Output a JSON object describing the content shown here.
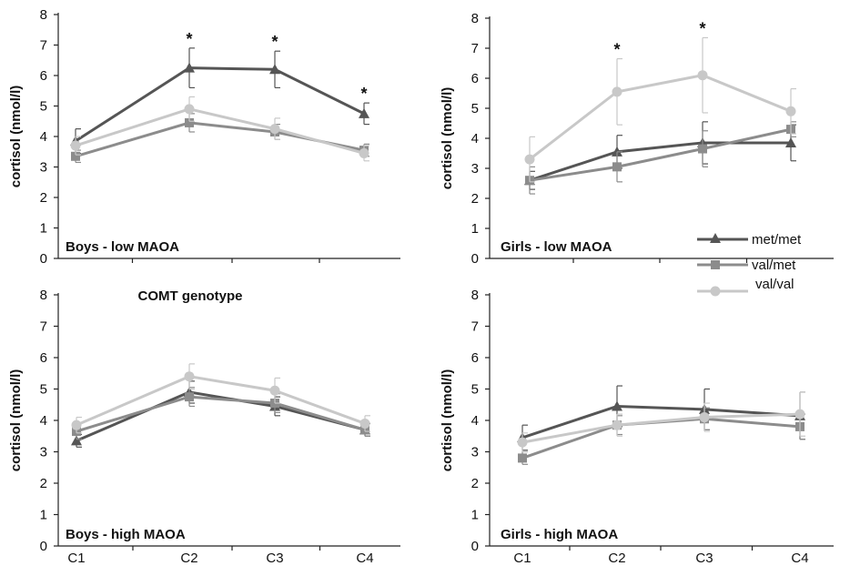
{
  "colors": {
    "met_met": "#555555",
    "val_met": "#8c8c8c",
    "val_val": "#c8c8c8",
    "axis": "#222222"
  },
  "legend": {
    "title": "COMT genotype",
    "entries": [
      {
        "label": "met/met",
        "marker": "triangle",
        "color": "#555555"
      },
      {
        "label": "val/met",
        "marker": "square",
        "color": "#8c8c8c"
      },
      {
        "label": "val/val",
        "marker": "circle",
        "color": "#c8c8c8"
      }
    ]
  },
  "chart_data": [
    {
      "type": "line",
      "title": "Boys - low MAOA",
      "ylabel": "cortisol (nmol/l)",
      "categories": [
        "C1",
        "C2",
        "C3",
        "C4"
      ],
      "ylim": [
        0,
        8
      ],
      "yticks": [
        "0",
        "1",
        "2",
        "3",
        "4",
        "5",
        "6",
        "7",
        "8"
      ],
      "show_xticks": false,
      "significance": [
        "",
        "*",
        "*",
        "*"
      ],
      "series": [
        {
          "name": "met/met",
          "values": [
            3.85,
            6.25,
            6.2,
            4.75
          ],
          "errors": [
            0.4,
            0.65,
            0.6,
            0.35
          ]
        },
        {
          "name": "val/met",
          "values": [
            3.35,
            4.45,
            4.15,
            3.55
          ],
          "errors": [
            0.2,
            0.3,
            0.25,
            0.2
          ]
        },
        {
          "name": "val/val",
          "values": [
            3.7,
            4.9,
            4.25,
            3.45
          ],
          "errors": [
            0.3,
            0.4,
            0.35,
            0.25
          ]
        }
      ]
    },
    {
      "type": "line",
      "title": "Girls - low MAOA",
      "ylabel": "cortisol (nmol/l)",
      "categories": [
        "C1",
        "C2",
        "C3",
        "C4"
      ],
      "ylim": [
        0,
        8
      ],
      "yticks": [
        "0",
        "1",
        "2",
        "3",
        "4",
        "5",
        "6",
        "7",
        "8"
      ],
      "show_xticks": false,
      "significance": [
        "",
        "*",
        "*",
        ""
      ],
      "series": [
        {
          "name": "met/met",
          "values": [
            2.6,
            3.55,
            3.85,
            3.85
          ],
          "errors": [
            0.3,
            0.55,
            0.7,
            0.6
          ]
        },
        {
          "name": "val/met",
          "values": [
            2.6,
            3.05,
            3.65,
            4.3
          ],
          "errors": [
            0.45,
            0.5,
            0.6,
            0.25
          ]
        },
        {
          "name": "val/val",
          "values": [
            3.3,
            5.55,
            6.1,
            4.9
          ],
          "errors": [
            0.75,
            1.1,
            1.25,
            0.75
          ]
        }
      ]
    },
    {
      "type": "line",
      "title": "Boys - high MAOA",
      "ylabel": "cortisol (nmol/l)",
      "categories": [
        "C1",
        "C2",
        "C3",
        "C4"
      ],
      "ylim": [
        0,
        8
      ],
      "yticks": [
        "0",
        "1",
        "2",
        "3",
        "4",
        "5",
        "6",
        "7",
        "8"
      ],
      "show_xticks": true,
      "significance": [
        "",
        "",
        "",
        ""
      ],
      "series": [
        {
          "name": "met/met",
          "values": [
            3.35,
            4.9,
            4.45,
            3.7
          ],
          "errors": [
            0.2,
            0.35,
            0.3,
            0.2
          ]
        },
        {
          "name": "val/met",
          "values": [
            3.65,
            4.75,
            4.55,
            3.7
          ],
          "errors": [
            0.25,
            0.3,
            0.3,
            0.2
          ]
        },
        {
          "name": "val/val",
          "values": [
            3.85,
            5.4,
            4.95,
            3.9
          ],
          "errors": [
            0.25,
            0.4,
            0.4,
            0.25
          ]
        }
      ]
    },
    {
      "type": "line",
      "title": "Girls - high MAOA",
      "ylabel": "cortisol (nmol/l)",
      "categories": [
        "C1",
        "C2",
        "C3",
        "C4"
      ],
      "ylim": [
        0,
        8
      ],
      "yticks": [
        "0",
        "1",
        "2",
        "3",
        "4",
        "5",
        "6",
        "7",
        "8"
      ],
      "show_xticks": true,
      "significance": [
        "",
        "",
        "",
        ""
      ],
      "series": [
        {
          "name": "met/met",
          "values": [
            3.45,
            4.45,
            4.35,
            4.15
          ],
          "errors": [
            0.4,
            0.65,
            0.65,
            0.75
          ]
        },
        {
          "name": "val/met",
          "values": [
            2.8,
            3.85,
            4.05,
            3.8
          ],
          "errors": [
            0.2,
            0.3,
            0.35,
            0.4
          ]
        },
        {
          "name": "val/val",
          "values": [
            3.3,
            3.85,
            4.1,
            4.2
          ],
          "errors": [
            0.3,
            0.35,
            0.45,
            0.7
          ]
        }
      ]
    }
  ]
}
